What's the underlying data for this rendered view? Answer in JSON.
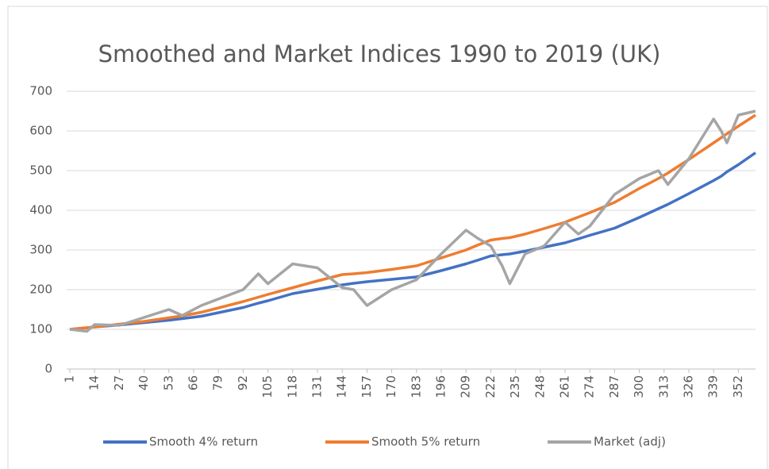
{
  "chart_data": {
    "type": "line",
    "title": "Smoothed and Market Indices 1990 to 2019 (UK)",
    "x": [
      1,
      10,
      14,
      27,
      40,
      53,
      60,
      70,
      92,
      100,
      105,
      118,
      131,
      144,
      150,
      157,
      170,
      183,
      196,
      209,
      215,
      222,
      228,
      232,
      240,
      250,
      261,
      268,
      274,
      287,
      300,
      310,
      315,
      326,
      339,
      343,
      346,
      352,
      361
    ],
    "series": [
      {
        "name": "Smooth 4% return",
        "color": "#4472c4",
        "values": [
          100,
          104,
          106,
          111,
          117,
          123,
          127,
          133,
          155,
          166,
          172,
          190,
          201,
          212,
          216,
          220,
          226,
          232,
          248,
          265,
          274,
          285,
          288,
          290,
          297,
          307,
          318,
          328,
          337,
          355,
          382,
          404,
          415,
          442,
          475,
          486,
          497,
          515,
          545
        ]
      },
      {
        "name": "Smooth 5% return",
        "color": "#ed7d31",
        "values": [
          100,
          104,
          106,
          113,
          120,
          129,
          134,
          143,
          170,
          181,
          188,
          205,
          222,
          238,
          240,
          243,
          251,
          260,
          280,
          300,
          312,
          325,
          329,
          331,
          340,
          354,
          370,
          383,
          394,
          420,
          455,
          480,
          494,
          528,
          570,
          583,
          593,
          612,
          640
        ]
      },
      {
        "name": "Market (adj)",
        "color": "#a5a5a5",
        "values": [
          100,
          95,
          112,
          110,
          130,
          150,
          135,
          160,
          200,
          240,
          215,
          265,
          255,
          205,
          200,
          160,
          200,
          225,
          290,
          350,
          330,
          310,
          260,
          215,
          290,
          310,
          370,
          340,
          360,
          440,
          480,
          500,
          465,
          530,
          630,
          600,
          570,
          640,
          650
        ]
      }
    ],
    "xlim": [
      1,
      361
    ],
    "xticks": [
      1,
      14,
      27,
      40,
      53,
      66,
      79,
      92,
      105,
      118,
      131,
      144,
      157,
      170,
      183,
      196,
      209,
      222,
      235,
      248,
      261,
      274,
      287,
      300,
      313,
      326,
      339,
      352
    ],
    "ylim": [
      0,
      700
    ],
    "yticks": [
      0,
      100,
      200,
      300,
      400,
      500,
      600,
      700
    ],
    "grid": true,
    "legend": "bottom"
  }
}
